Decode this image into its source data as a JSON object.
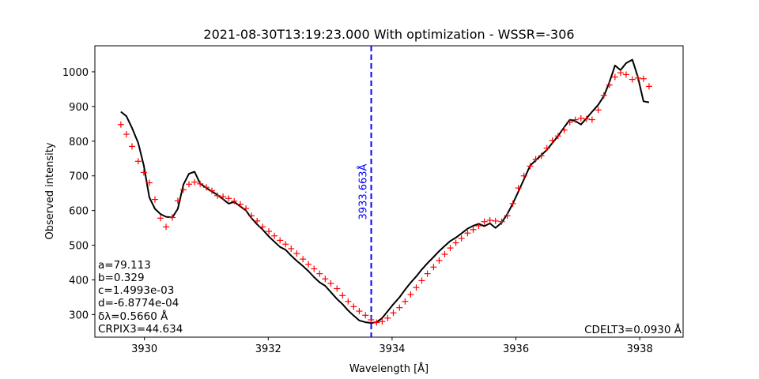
{
  "chart_data": {
    "type": "line",
    "title": "2021-08-30T13:19:23.000 With optimization - WSSR=-306",
    "xlabel": "Wavelength [Å]",
    "ylabel": "Observed intensity",
    "xlim": [
      3929.2,
      3938.7
    ],
    "ylim": [
      235,
      1075
    ],
    "xticks": [
      3930,
      3932,
      3934,
      3936,
      3938
    ],
    "yticks": [
      300,
      400,
      500,
      600,
      700,
      800,
      900,
      1000
    ],
    "grid": false,
    "colors": {
      "fit": "#000000",
      "observed": "#ff0000",
      "center": "#0000ff"
    },
    "vline": {
      "x": 3933.663,
      "label": "3933.663Å"
    },
    "annotations_left": [
      "a=79.113",
      "b=0.329",
      "c=1.4993e-03",
      "d=-6.8774e-04",
      "δλ=0.5660 Å",
      "CRPIX3=44.634"
    ],
    "annotation_right": "CDELT3=0.0930 Å",
    "series": [
      {
        "style": "line",
        "points": [
          [
            3929.62,
            885
          ],
          [
            3929.71,
            872
          ],
          [
            3929.8,
            838
          ],
          [
            3929.9,
            795
          ],
          [
            3929.99,
            730
          ],
          [
            3930.08,
            638
          ],
          [
            3930.17,
            605
          ],
          [
            3930.26,
            590
          ],
          [
            3930.35,
            582
          ],
          [
            3930.45,
            580
          ],
          [
            3930.54,
            605
          ],
          [
            3930.63,
            675
          ],
          [
            3930.72,
            706
          ],
          [
            3930.81,
            712
          ],
          [
            3930.9,
            678
          ],
          [
            3931.0,
            665
          ],
          [
            3931.09,
            655
          ],
          [
            3931.18,
            645
          ],
          [
            3931.27,
            633
          ],
          [
            3931.36,
            620
          ],
          [
            3931.45,
            625
          ],
          [
            3931.55,
            612
          ],
          [
            3931.64,
            600
          ],
          [
            3931.73,
            578
          ],
          [
            3931.82,
            560
          ],
          [
            3931.91,
            545
          ],
          [
            3932.01,
            525
          ],
          [
            3932.1,
            510
          ],
          [
            3932.19,
            495
          ],
          [
            3932.28,
            487
          ],
          [
            3932.37,
            470
          ],
          [
            3932.46,
            455
          ],
          [
            3932.56,
            440
          ],
          [
            3932.65,
            425
          ],
          [
            3932.74,
            408
          ],
          [
            3932.83,
            393
          ],
          [
            3932.92,
            383
          ],
          [
            3933.01,
            365
          ],
          [
            3933.11,
            345
          ],
          [
            3933.2,
            330
          ],
          [
            3933.29,
            312
          ],
          [
            3933.38,
            297
          ],
          [
            3933.47,
            283
          ],
          [
            3933.57,
            278
          ],
          [
            3933.66,
            276
          ],
          [
            3933.75,
            278
          ],
          [
            3933.84,
            290
          ],
          [
            3933.93,
            310
          ],
          [
            3934.02,
            330
          ],
          [
            3934.12,
            350
          ],
          [
            3934.21,
            372
          ],
          [
            3934.3,
            392
          ],
          [
            3934.39,
            410
          ],
          [
            3934.48,
            430
          ],
          [
            3934.57,
            448
          ],
          [
            3934.67,
            466
          ],
          [
            3934.76,
            483
          ],
          [
            3934.85,
            498
          ],
          [
            3934.94,
            512
          ],
          [
            3935.03,
            522
          ],
          [
            3935.12,
            534
          ],
          [
            3935.22,
            548
          ],
          [
            3935.31,
            556
          ],
          [
            3935.4,
            562
          ],
          [
            3935.49,
            555
          ],
          [
            3935.58,
            563
          ],
          [
            3935.67,
            550
          ],
          [
            3935.77,
            565
          ],
          [
            3935.86,
            590
          ],
          [
            3935.95,
            620
          ],
          [
            3936.04,
            655
          ],
          [
            3936.13,
            690
          ],
          [
            3936.23,
            730
          ],
          [
            3936.32,
            745
          ],
          [
            3936.41,
            760
          ],
          [
            3936.5,
            775
          ],
          [
            3936.59,
            795
          ],
          [
            3936.68,
            815
          ],
          [
            3936.78,
            840
          ],
          [
            3936.87,
            862
          ],
          [
            3936.96,
            858
          ],
          [
            3937.05,
            848
          ],
          [
            3937.14,
            866
          ],
          [
            3937.23,
            885
          ],
          [
            3937.33,
            905
          ],
          [
            3937.42,
            930
          ],
          [
            3937.51,
            970
          ],
          [
            3937.6,
            1018
          ],
          [
            3937.69,
            1005
          ],
          [
            3937.78,
            1025
          ],
          [
            3937.88,
            1035
          ],
          [
            3937.97,
            985
          ],
          [
            3938.06,
            915
          ],
          [
            3938.15,
            912
          ]
        ]
      },
      {
        "style": "markers",
        "marker": "+",
        "points": [
          [
            3929.62,
            848
          ],
          [
            3929.71,
            820
          ],
          [
            3929.8,
            785
          ],
          [
            3929.9,
            742
          ],
          [
            3929.99,
            710
          ],
          [
            3930.08,
            680
          ],
          [
            3930.17,
            632
          ],
          [
            3930.26,
            578
          ],
          [
            3930.35,
            553
          ],
          [
            3930.45,
            580
          ],
          [
            3930.54,
            628
          ],
          [
            3930.63,
            660
          ],
          [
            3930.72,
            676
          ],
          [
            3930.81,
            682
          ],
          [
            3930.9,
            677
          ],
          [
            3931.0,
            667
          ],
          [
            3931.09,
            657
          ],
          [
            3931.18,
            643
          ],
          [
            3931.27,
            640
          ],
          [
            3931.36,
            635
          ],
          [
            3931.45,
            627
          ],
          [
            3931.55,
            618
          ],
          [
            3931.64,
            606
          ],
          [
            3931.73,
            585
          ],
          [
            3931.82,
            570
          ],
          [
            3931.91,
            553
          ],
          [
            3932.01,
            540
          ],
          [
            3932.1,
            527
          ],
          [
            3932.19,
            514
          ],
          [
            3932.28,
            503
          ],
          [
            3932.37,
            490
          ],
          [
            3932.46,
            476
          ],
          [
            3932.56,
            460
          ],
          [
            3932.65,
            445
          ],
          [
            3932.74,
            432
          ],
          [
            3932.83,
            418
          ],
          [
            3932.92,
            403
          ],
          [
            3933.01,
            390
          ],
          [
            3933.11,
            375
          ],
          [
            3933.2,
            355
          ],
          [
            3933.29,
            338
          ],
          [
            3933.38,
            323
          ],
          [
            3933.47,
            310
          ],
          [
            3933.57,
            298
          ],
          [
            3933.66,
            285
          ],
          [
            3933.75,
            277
          ],
          [
            3933.84,
            280
          ],
          [
            3933.93,
            290
          ],
          [
            3934.02,
            305
          ],
          [
            3934.12,
            320
          ],
          [
            3934.21,
            338
          ],
          [
            3934.3,
            358
          ],
          [
            3934.39,
            378
          ],
          [
            3934.48,
            398
          ],
          [
            3934.57,
            418
          ],
          [
            3934.67,
            437
          ],
          [
            3934.76,
            456
          ],
          [
            3934.85,
            474
          ],
          [
            3934.94,
            492
          ],
          [
            3935.03,
            507
          ],
          [
            3935.12,
            520
          ],
          [
            3935.22,
            535
          ],
          [
            3935.31,
            545
          ],
          [
            3935.4,
            556
          ],
          [
            3935.49,
            568
          ],
          [
            3935.58,
            572
          ],
          [
            3935.67,
            570
          ],
          [
            3935.77,
            568
          ],
          [
            3935.86,
            585
          ],
          [
            3935.95,
            620
          ],
          [
            3936.04,
            665
          ],
          [
            3936.13,
            700
          ],
          [
            3936.23,
            728
          ],
          [
            3936.32,
            748
          ],
          [
            3936.41,
            758
          ],
          [
            3936.5,
            780
          ],
          [
            3936.59,
            802
          ],
          [
            3936.68,
            815
          ],
          [
            3936.78,
            832
          ],
          [
            3936.87,
            855
          ],
          [
            3936.96,
            862
          ],
          [
            3937.05,
            866
          ],
          [
            3937.14,
            864
          ],
          [
            3937.23,
            862
          ],
          [
            3937.33,
            890
          ],
          [
            3937.42,
            932
          ],
          [
            3937.51,
            962
          ],
          [
            3937.6,
            985
          ],
          [
            3937.69,
            997
          ],
          [
            3937.78,
            992
          ],
          [
            3937.88,
            978
          ],
          [
            3937.97,
            982
          ],
          [
            3938.06,
            980
          ],
          [
            3938.15,
            958
          ]
        ]
      }
    ]
  }
}
